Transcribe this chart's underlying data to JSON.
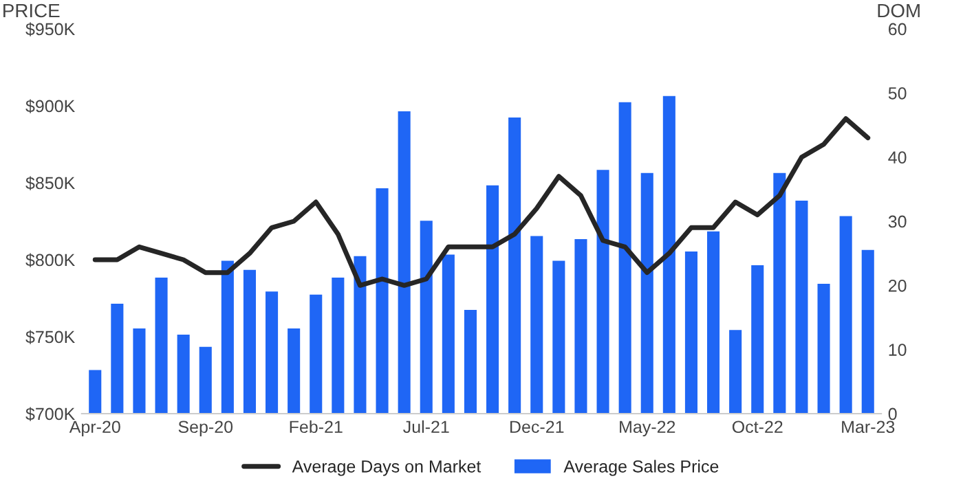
{
  "chart_data": {
    "type": "bar",
    "ylabel": "PRICE",
    "y2label": "DOM",
    "categories": [
      "Apr-20",
      null,
      null,
      null,
      null,
      "Sep-20",
      null,
      null,
      null,
      null,
      "Feb-21",
      null,
      null,
      null,
      null,
      "Jul-21",
      null,
      null,
      null,
      null,
      "Dec-21",
      null,
      null,
      null,
      null,
      "May-22",
      null,
      null,
      null,
      null,
      "Oct-22",
      null,
      null,
      null,
      null,
      "Mar-23"
    ],
    "series": [
      {
        "name": "Average Days on Market",
        "type": "line",
        "axis": "y2",
        "color": "#262626",
        "values": [
          24,
          24,
          26,
          25,
          24,
          22,
          22,
          25,
          29,
          30,
          33,
          28,
          20,
          21,
          20,
          21,
          26,
          26,
          26,
          28,
          32,
          37,
          34,
          27,
          26,
          22,
          25,
          29,
          29,
          33,
          31,
          34,
          40,
          42,
          46,
          43
        ]
      },
      {
        "name": "Average Sales Price",
        "color": "#1f66f5",
        "values": [
          729,
          772,
          756,
          789,
          752,
          744,
          800,
          794,
          780,
          756,
          778,
          789,
          803,
          847,
          897,
          826,
          804,
          768,
          849,
          893,
          816,
          800,
          814,
          859,
          903,
          857,
          907,
          806,
          819,
          755,
          797,
          857,
          839,
          785,
          829,
          807
        ]
      }
    ],
    "ylim": [
      700,
      950
    ],
    "yticks": [
      {
        "value": 700,
        "label": "$700K"
      },
      {
        "value": 750,
        "label": "$750K"
      },
      {
        "value": 800,
        "label": "$800K"
      },
      {
        "value": 850,
        "label": "$850K"
      },
      {
        "value": 900,
        "label": "$900K"
      },
      {
        "value": 950,
        "label": "$950K"
      }
    ],
    "y2lim": [
      0,
      60
    ],
    "y2ticks": [
      0,
      10,
      20,
      30,
      40,
      50,
      60
    ],
    "legend": "bottom",
    "grid": false,
    "line_style": "solid",
    "marker": "none"
  }
}
